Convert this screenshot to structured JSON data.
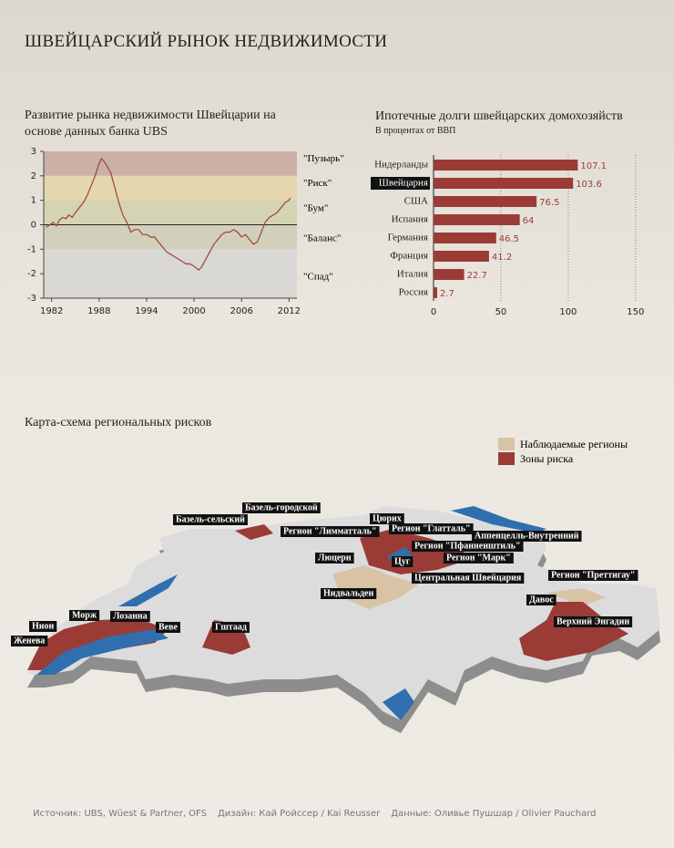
{
  "title": "ШВЕЙЦАРСКИЙ РЫНОК НЕДВИЖИМОСТИ",
  "chart_data": [
    {
      "type": "line",
      "title": "Развитие рынка недвижимости Швейцарии на основе данных банка UBS",
      "x": [
        1981.3,
        1981.8,
        1982.2,
        1982.6,
        1983,
        1983.4,
        1983.8,
        1984.2,
        1984.6,
        1985,
        1985.5,
        1986,
        1986.5,
        1987,
        1987.5,
        1988,
        1988.3,
        1988.6,
        1989,
        1989.5,
        1990,
        1990.5,
        1991,
        1991.5,
        1992,
        1992.5,
        1993,
        1993.5,
        1994,
        1994.5,
        1995,
        1995.5,
        1996,
        1996.5,
        1997,
        1997.5,
        1998,
        1998.5,
        1999,
        1999.5,
        2000,
        2000.6,
        2001,
        2001.5,
        2002,
        2002.5,
        2003,
        2003.5,
        2004,
        2004.5,
        2005,
        2005.5,
        2006,
        2006.5,
        2007,
        2007.5,
        2008,
        2008.5,
        2009,
        2009.5,
        2010,
        2010.5,
        2011,
        2011.5,
        2012,
        2012.2
      ],
      "series": [
        {
          "color": "#a24a40",
          "values": [
            -0.1,
            0.0,
            0.1,
            -0.05,
            0.2,
            0.3,
            0.25,
            0.4,
            0.3,
            0.5,
            0.7,
            0.9,
            1.2,
            1.6,
            2.0,
            2.5,
            2.7,
            2.6,
            2.4,
            2.1,
            1.5,
            0.9,
            0.4,
            0.1,
            -0.3,
            -0.2,
            -0.2,
            -0.4,
            -0.4,
            -0.5,
            -0.5,
            -0.7,
            -0.9,
            -1.1,
            -1.2,
            -1.3,
            -1.4,
            -1.5,
            -1.6,
            -1.6,
            -1.7,
            -1.85,
            -1.7,
            -1.4,
            -1.1,
            -0.8,
            -0.6,
            -0.4,
            -0.3,
            -0.3,
            -0.2,
            -0.3,
            -0.5,
            -0.4,
            -0.6,
            -0.8,
            -0.7,
            -0.3,
            0.1,
            0.3,
            0.4,
            0.5,
            0.7,
            0.9,
            1.0,
            1.1
          ]
        }
      ],
      "xlim": [
        1981,
        2013
      ],
      "xticks": [
        1982,
        1988,
        1994,
        2000,
        2006,
        2012
      ],
      "ylim": [
        -3,
        3
      ],
      "yticks": [
        -3,
        -2,
        -1,
        0,
        1,
        2,
        3
      ],
      "zones": [
        {
          "label": "\"Пузырь\"",
          "from": 2,
          "to": 3,
          "color": "#cbb0a7"
        },
        {
          "label": "\"Риск\"",
          "from": 1,
          "to": 2,
          "color": "#e6d6ad"
        },
        {
          "label": "\"Бум\"",
          "from": 0,
          "to": 1,
          "color": "#d4d3b4"
        },
        {
          "label": "\"Баланс\"",
          "from": -1,
          "to": 0,
          "color": "#d2d0bb"
        },
        {
          "label": "\"Спад\"",
          "from": -3,
          "to": -1,
          "color": "#d9d8d4"
        }
      ]
    },
    {
      "type": "bar",
      "orientation": "horizontal",
      "title": "Ипотечные долги швейцарских домохозяйств",
      "subtitle": "В процентах от ВВП",
      "categories": [
        "Нидерланды",
        "Швейцария",
        "США",
        "Испания",
        "Германия",
        "Франция",
        "Италия",
        "Россия"
      ],
      "values": [
        107.1,
        103.6,
        76.5,
        64,
        46.5,
        41.2,
        22.7,
        2.7
      ],
      "color": "#9b3b36",
      "highlight": 1,
      "xlim": [
        0,
        165
      ],
      "xticks": [
        0,
        50,
        100,
        150
      ],
      "grid": true
    }
  ],
  "map": {
    "title": "Карта-схема региональных рисков",
    "legend": [
      {
        "label": "Наблюдаемые регионы",
        "color": "#d8c3a5"
      },
      {
        "label": "Зоны риска",
        "color": "#9b3b36"
      }
    ],
    "labels": [
      "Базель-городской",
      "Базель-сельский",
      "Регион \"Лимматталь\"",
      "Цюрих",
      "Регион \"Глатталь\"",
      "Аппенцелль-Внутренний",
      "Регион \"Пфанненштиль\"",
      "Люцерн",
      "Цуг",
      "Регион \"Марк\"",
      "Центральная Швейцария",
      "Нидвальден",
      "Регион \"Преттигау\"",
      "Давос",
      "Верхний Энгадин",
      "Нион",
      "Морж",
      "Лозанна",
      "Веве",
      "Гштаад",
      "Женева"
    ]
  },
  "footer": [
    "Источник: UBS, Wüest & Partner, OFS",
    "Дизайн: Кай Ройссер / Kai Reusser",
    "Данные: Оливье Пушшар / Olivier Pauchard"
  ]
}
